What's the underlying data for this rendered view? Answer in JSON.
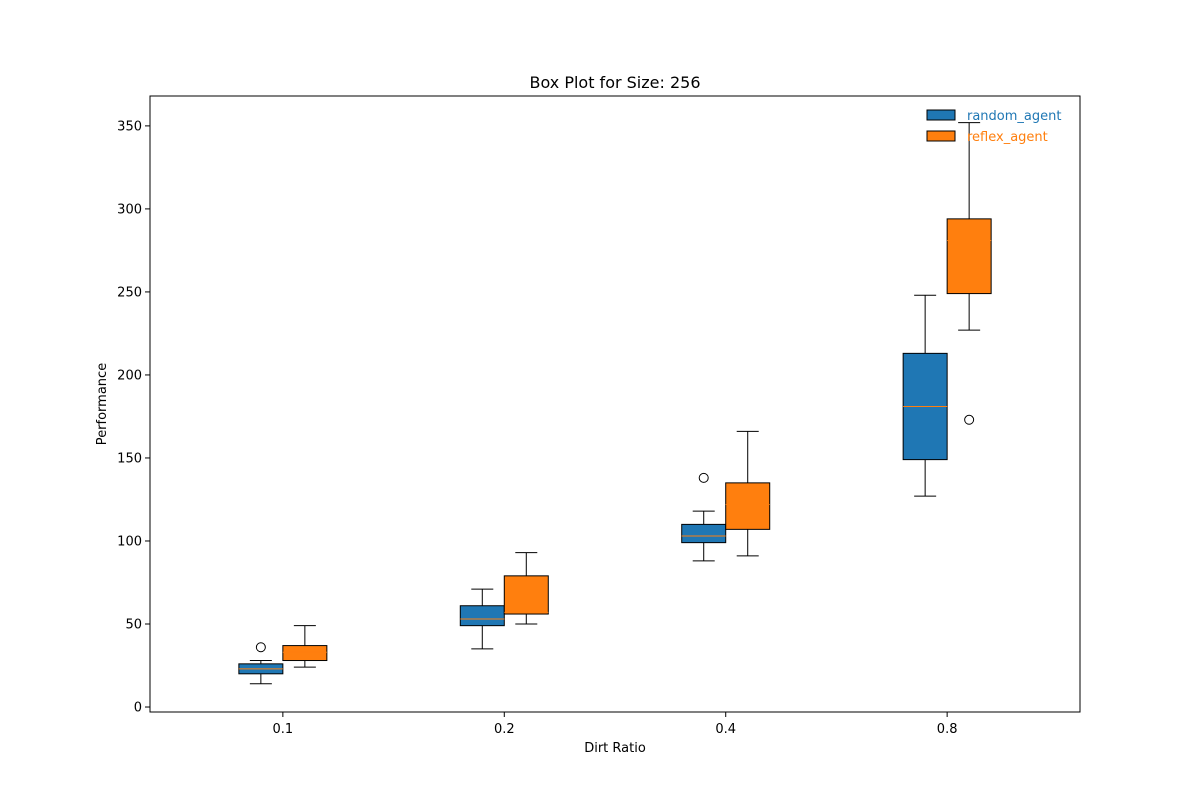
{
  "chart_data": {
    "type": "box",
    "title": "Box Plot for Size: 256",
    "xlabel": "Dirt Ratio",
    "ylabel": "Performance",
    "categories": [
      "0.1",
      "0.2",
      "0.4",
      "0.8"
    ],
    "ylim": [
      -3,
      368
    ],
    "yticks": [
      0,
      50,
      100,
      150,
      200,
      250,
      300,
      350
    ],
    "grid": false,
    "legend_position": "top-right",
    "series": [
      {
        "name": "random_agent",
        "color": "#1f77b4",
        "median_color": "#ff7f0e",
        "boxes": [
          {
            "whisker_low": 14,
            "q1": 20,
            "median": 23,
            "q3": 26,
            "whisker_high": 28,
            "outliers": [
              36
            ]
          },
          {
            "whisker_low": 35,
            "q1": 49,
            "median": 53,
            "q3": 61,
            "whisker_high": 71,
            "outliers": []
          },
          {
            "whisker_low": 88,
            "q1": 99,
            "median": 103,
            "q3": 110,
            "whisker_high": 118,
            "outliers": [
              138
            ]
          },
          {
            "whisker_low": 127,
            "q1": 149,
            "median": 181,
            "q3": 213,
            "whisker_high": 248,
            "outliers": []
          }
        ]
      },
      {
        "name": "reflex_agent",
        "color": "#ff7f0e",
        "median_color": "#ff7f0e",
        "boxes": [
          {
            "whisker_low": 24,
            "q1": 28,
            "median": 33,
            "q3": 37,
            "whisker_high": 49,
            "outliers": []
          },
          {
            "whisker_low": 50,
            "q1": 56,
            "median": 57,
            "q3": 79,
            "whisker_high": 93,
            "outliers": []
          },
          {
            "whisker_low": 91,
            "q1": 107,
            "median": 122,
            "q3": 135,
            "whisker_high": 166,
            "outliers": []
          },
          {
            "whisker_low": 227,
            "q1": 249,
            "median": 281,
            "q3": 294,
            "whisker_high": 352,
            "outliers": [
              173
            ]
          }
        ]
      }
    ]
  }
}
